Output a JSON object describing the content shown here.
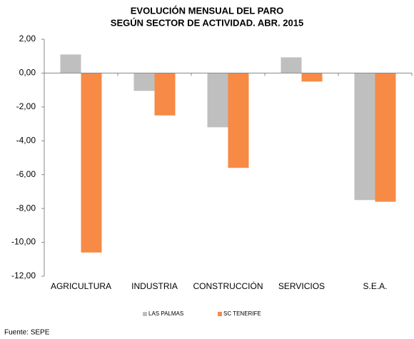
{
  "chart_data": {
    "type": "bar",
    "title": "EVOLUCIÓN MENSUAL DEL PARO",
    "subtitle": "SEGÚN SECTOR DE ACTIVIDAD. ABR. 2015",
    "categories": [
      "AGRICULTURA",
      "INDUSTRIA",
      "CONSTRUCCIÓN",
      "SERVICIOS",
      "S.E.A."
    ],
    "series": [
      {
        "name": "LAS PALMAS",
        "color": "#bfbfbf",
        "values": [
          1.1,
          -1.05,
          -3.2,
          0.93,
          -7.5
        ]
      },
      {
        "name": "SC TENERIFE",
        "color": "#f78a45",
        "values": [
          -10.6,
          -2.5,
          -5.6,
          -0.5,
          -7.6
        ]
      }
    ],
    "ylim": [
      -12,
      2
    ],
    "yticks": [
      {
        "value": 2,
        "label": "2,00"
      },
      {
        "value": 0,
        "label": "0,00"
      },
      {
        "value": -2,
        "label": "-2,00"
      },
      {
        "value": -4,
        "label": "-4,00"
      },
      {
        "value": -6,
        "label": "-6,00"
      },
      {
        "value": -8,
        "label": "-8,00"
      },
      {
        "value": -10,
        "label": "-10,00"
      },
      {
        "value": -12,
        "label": "-12,00"
      }
    ],
    "grid": false,
    "legend": "bottom",
    "source": "Fuente: SEPE"
  }
}
